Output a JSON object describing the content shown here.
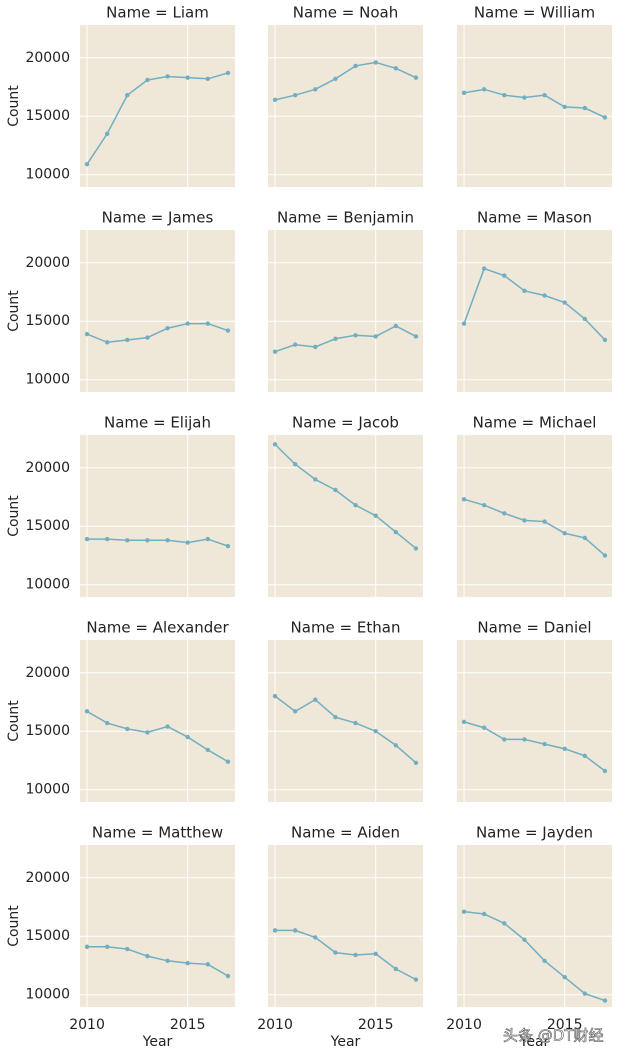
{
  "chart_data": [
    {
      "type": "line",
      "title": "Name = Liam",
      "ylabel": "Count",
      "x": [
        2010,
        2011,
        2012,
        2013,
        2014,
        2015,
        2016,
        2017
      ],
      "values": [
        10900,
        13500,
        16800,
        18100,
        18400,
        18300,
        18200,
        18700
      ],
      "color": "#72aec2",
      "xlim": [
        2009.65,
        2017.35
      ],
      "ylim": [
        8950,
        22800
      ],
      "xticks": [
        2010,
        2015
      ],
      "yticks": [
        10000,
        15000,
        20000
      ],
      "grid": true
    },
    {
      "type": "line",
      "title": "Name = Noah",
      "x": [
        2010,
        2011,
        2012,
        2013,
        2014,
        2015,
        2016,
        2017
      ],
      "values": [
        16400,
        16800,
        17300,
        18200,
        19300,
        19600,
        19100,
        18300
      ],
      "color": "#72aec2",
      "xlim": [
        2009.65,
        2017.35
      ],
      "ylim": [
        8950,
        22800
      ],
      "xticks": [
        2010,
        2015
      ],
      "yticks": [
        10000,
        15000,
        20000
      ],
      "grid": true
    },
    {
      "type": "line",
      "title": "Name = William",
      "x": [
        2010,
        2011,
        2012,
        2013,
        2014,
        2015,
        2016,
        2017
      ],
      "values": [
        17000,
        17300,
        16800,
        16600,
        16800,
        15800,
        15700,
        14900
      ],
      "color": "#72aec2",
      "xlim": [
        2009.65,
        2017.35
      ],
      "ylim": [
        8950,
        22800
      ],
      "xticks": [
        2010,
        2015
      ],
      "yticks": [
        10000,
        15000,
        20000
      ],
      "grid": true
    },
    {
      "type": "line",
      "title": "Name = James",
      "ylabel": "Count",
      "x": [
        2010,
        2011,
        2012,
        2013,
        2014,
        2015,
        2016,
        2017
      ],
      "values": [
        13900,
        13200,
        13400,
        13600,
        14400,
        14800,
        14800,
        14200
      ],
      "color": "#72aec2",
      "xlim": [
        2009.65,
        2017.35
      ],
      "ylim": [
        8950,
        22800
      ],
      "xticks": [
        2010,
        2015
      ],
      "yticks": [
        10000,
        15000,
        20000
      ],
      "grid": true
    },
    {
      "type": "line",
      "title": "Name = Benjamin",
      "x": [
        2010,
        2011,
        2012,
        2013,
        2014,
        2015,
        2016,
        2017
      ],
      "values": [
        12400,
        13000,
        12800,
        13500,
        13800,
        13700,
        14600,
        13700
      ],
      "color": "#72aec2",
      "xlim": [
        2009.65,
        2017.35
      ],
      "ylim": [
        8950,
        22800
      ],
      "xticks": [
        2010,
        2015
      ],
      "yticks": [
        10000,
        15000,
        20000
      ],
      "grid": true
    },
    {
      "type": "line",
      "title": "Name = Mason",
      "x": [
        2010,
        2011,
        2012,
        2013,
        2014,
        2015,
        2016,
        2017
      ],
      "values": [
        14800,
        19500,
        18900,
        17600,
        17200,
        16600,
        15200,
        13400
      ],
      "color": "#72aec2",
      "xlim": [
        2009.65,
        2017.35
      ],
      "ylim": [
        8950,
        22800
      ],
      "xticks": [
        2010,
        2015
      ],
      "yticks": [
        10000,
        15000,
        20000
      ],
      "grid": true
    },
    {
      "type": "line",
      "title": "Name = Elijah",
      "ylabel": "Count",
      "x": [
        2010,
        2011,
        2012,
        2013,
        2014,
        2015,
        2016,
        2017
      ],
      "values": [
        13900,
        13900,
        13800,
        13800,
        13800,
        13600,
        13900,
        13300
      ],
      "color": "#72aec2",
      "xlim": [
        2009.65,
        2017.35
      ],
      "ylim": [
        8950,
        22800
      ],
      "xticks": [
        2010,
        2015
      ],
      "yticks": [
        10000,
        15000,
        20000
      ],
      "grid": true
    },
    {
      "type": "line",
      "title": "Name = Jacob",
      "x": [
        2010,
        2011,
        2012,
        2013,
        2014,
        2015,
        2016,
        2017
      ],
      "values": [
        22000,
        20300,
        19000,
        18100,
        16800,
        15900,
        14500,
        13100
      ],
      "color": "#72aec2",
      "xlim": [
        2009.65,
        2017.35
      ],
      "ylim": [
        8950,
        22800
      ],
      "xticks": [
        2010,
        2015
      ],
      "yticks": [
        10000,
        15000,
        20000
      ],
      "grid": true
    },
    {
      "type": "line",
      "title": "Name = Michael",
      "x": [
        2010,
        2011,
        2012,
        2013,
        2014,
        2015,
        2016,
        2017
      ],
      "values": [
        17300,
        16800,
        16100,
        15500,
        15400,
        14400,
        14000,
        12500
      ],
      "color": "#72aec2",
      "xlim": [
        2009.65,
        2017.35
      ],
      "ylim": [
        8950,
        22800
      ],
      "xticks": [
        2010,
        2015
      ],
      "yticks": [
        10000,
        15000,
        20000
      ],
      "grid": true
    },
    {
      "type": "line",
      "title": "Name = Alexander",
      "ylabel": "Count",
      "x": [
        2010,
        2011,
        2012,
        2013,
        2014,
        2015,
        2016,
        2017
      ],
      "values": [
        16700,
        15700,
        15200,
        14900,
        15400,
        14500,
        13400,
        12400
      ],
      "color": "#72aec2",
      "xlim": [
        2009.65,
        2017.35
      ],
      "ylim": [
        8950,
        22800
      ],
      "xticks": [
        2010,
        2015
      ],
      "yticks": [
        10000,
        15000,
        20000
      ],
      "grid": true
    },
    {
      "type": "line",
      "title": "Name = Ethan",
      "x": [
        2010,
        2011,
        2012,
        2013,
        2014,
        2015,
        2016,
        2017
      ],
      "values": [
        18000,
        16700,
        17700,
        16200,
        15700,
        15000,
        13800,
        12300
      ],
      "color": "#72aec2",
      "xlim": [
        2009.65,
        2017.35
      ],
      "ylim": [
        8950,
        22800
      ],
      "xticks": [
        2010,
        2015
      ],
      "yticks": [
        10000,
        15000,
        20000
      ],
      "grid": true
    },
    {
      "type": "line",
      "title": "Name = Daniel",
      "x": [
        2010,
        2011,
        2012,
        2013,
        2014,
        2015,
        2016,
        2017
      ],
      "values": [
        15800,
        15300,
        14300,
        14300,
        13900,
        13500,
        12900,
        11600
      ],
      "color": "#72aec2",
      "xlim": [
        2009.65,
        2017.35
      ],
      "ylim": [
        8950,
        22800
      ],
      "xticks": [
        2010,
        2015
      ],
      "yticks": [
        10000,
        15000,
        20000
      ],
      "grid": true
    },
    {
      "type": "line",
      "title": "Name = Matthew",
      "ylabel": "Count",
      "xlabel": "Year",
      "x": [
        2010,
        2011,
        2012,
        2013,
        2014,
        2015,
        2016,
        2017
      ],
      "values": [
        14100,
        14100,
        13900,
        13300,
        12900,
        12700,
        12600,
        11600
      ],
      "color": "#72aec2",
      "xlim": [
        2009.65,
        2017.35
      ],
      "ylim": [
        8950,
        22800
      ],
      "xticks": [
        2010,
        2015
      ],
      "yticks": [
        10000,
        15000,
        20000
      ],
      "grid": true
    },
    {
      "type": "line",
      "title": "Name = Aiden",
      "xlabel": "Year",
      "x": [
        2010,
        2011,
        2012,
        2013,
        2014,
        2015,
        2016,
        2017
      ],
      "values": [
        15500,
        15500,
        14900,
        13600,
        13400,
        13500,
        12200,
        11300
      ],
      "color": "#72aec2",
      "xlim": [
        2009.65,
        2017.35
      ],
      "ylim": [
        8950,
        22800
      ],
      "xticks": [
        2010,
        2015
      ],
      "yticks": [
        10000,
        15000,
        20000
      ],
      "grid": true
    },
    {
      "type": "line",
      "title": "Name = Jayden",
      "xlabel": "Year",
      "x": [
        2010,
        2011,
        2012,
        2013,
        2014,
        2015,
        2016,
        2017
      ],
      "values": [
        17100,
        16900,
        16100,
        14700,
        12900,
        11500,
        10100,
        9500
      ],
      "color": "#72aec2",
      "xlim": [
        2009.65,
        2017.35
      ],
      "ylim": [
        8950,
        22800
      ],
      "xticks": [
        2010,
        2015
      ],
      "yticks": [
        10000,
        15000,
        20000
      ],
      "grid": true
    }
  ],
  "watermark": "头条 @DT财经"
}
